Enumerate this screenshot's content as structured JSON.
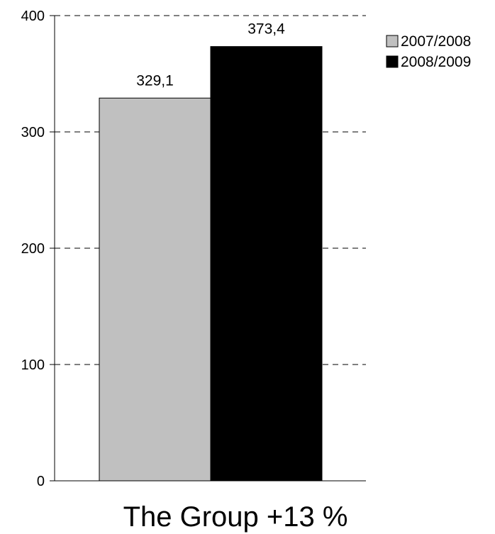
{
  "chart_data": {
    "type": "bar",
    "categories": [
      "The Group +13 %"
    ],
    "series": [
      {
        "name": "2007/2008",
        "values": [
          329.1
        ],
        "value_label": "329,1",
        "color": "#c0c0c0"
      },
      {
        "name": "2008/2009",
        "values": [
          373.4
        ],
        "value_label": "373,4",
        "color": "#000000"
      }
    ],
    "title": "",
    "xlabel": "",
    "ylabel": "",
    "ylim": [
      0,
      400
    ],
    "yticks": [
      0,
      100,
      200,
      300,
      400
    ],
    "grid": "dashed-horizontal",
    "legend_position": "top-right"
  }
}
